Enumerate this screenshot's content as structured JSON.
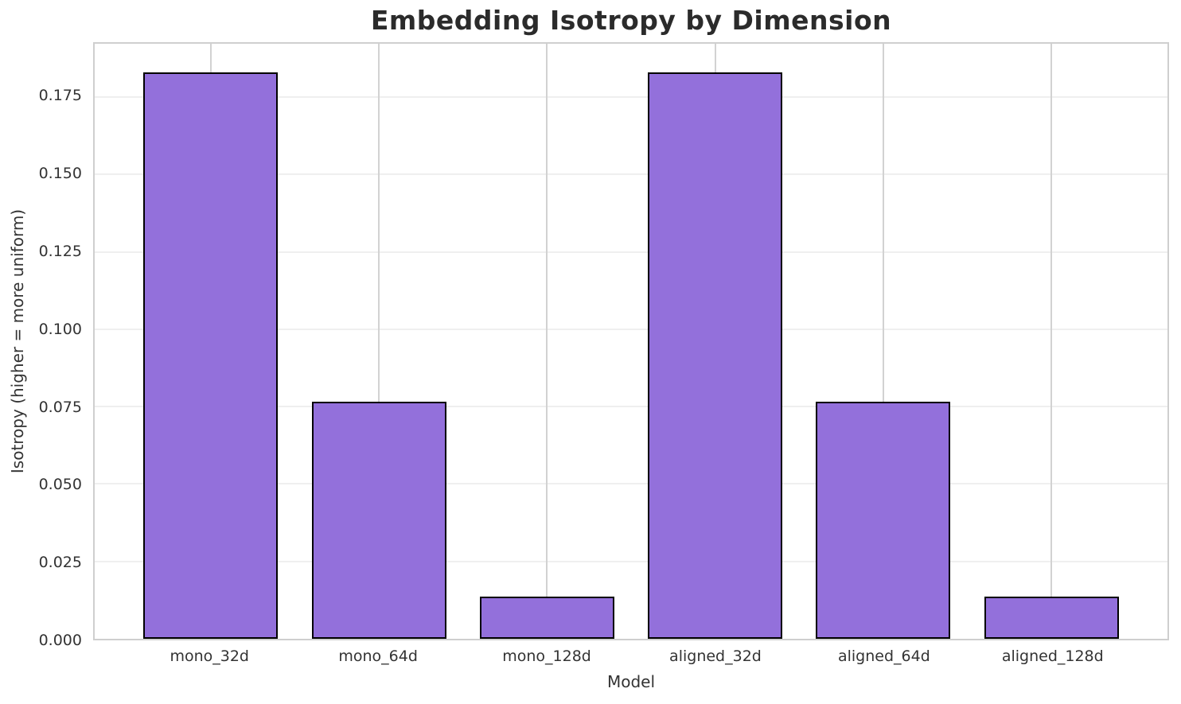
{
  "chart_data": {
    "type": "bar",
    "title": "Embedding Isotropy by Dimension",
    "xlabel": "Model",
    "ylabel": "Isotropy (higher = more uniform)",
    "categories": [
      "mono_32d",
      "mono_64d",
      "mono_128d",
      "aligned_32d",
      "aligned_64d",
      "aligned_128d"
    ],
    "values": [
      0.183,
      0.0765,
      0.0135,
      0.183,
      0.0765,
      0.0135
    ],
    "yticks": [
      0.0,
      0.025,
      0.05,
      0.075,
      0.1,
      0.125,
      0.15,
      0.175
    ],
    "ytick_labels": [
      "0.000",
      "0.025",
      "0.050",
      "0.075",
      "0.100",
      "0.125",
      "0.150",
      "0.175"
    ],
    "ylim": [
      0,
      0.1922
    ],
    "grid": true,
    "legend": "none",
    "bar_color": "#9370DB",
    "bar_edge_color": "#000000",
    "bar_width_fraction": 0.8,
    "x_margin_fraction": 0.05
  }
}
